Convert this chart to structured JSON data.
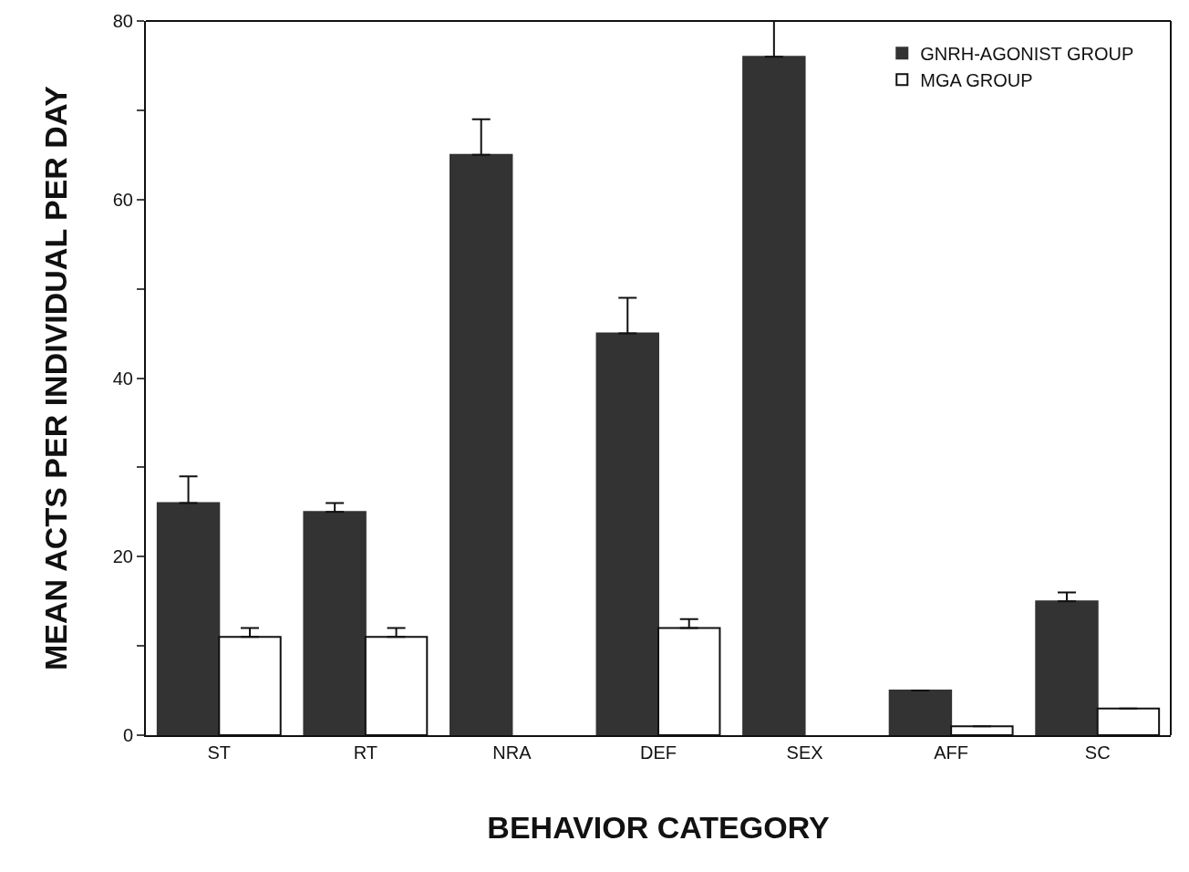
{
  "chart_data": {
    "type": "bar",
    "xlabel": "BEHAVIOR CATEGORY",
    "ylabel": "MEAN ACTS PER INDIVIDUAL PER DAY",
    "categories": [
      "ST",
      "RT",
      "NRA",
      "DEF",
      "SEX",
      "AFF",
      "SC"
    ],
    "series": [
      {
        "name": "GNRH-AGONIST GROUP",
        "color": "#333333",
        "values": [
          26,
          25,
          65,
          45,
          76,
          5,
          15
        ],
        "errors": [
          [
            26,
            29
          ],
          [
            25,
            26
          ],
          [
            65,
            69
          ],
          [
            45,
            49
          ],
          [
            76,
            80
          ],
          null,
          [
            15,
            16
          ]
        ]
      },
      {
        "name": "MGA GROUP",
        "color": "#ffffff",
        "values": [
          11,
          11,
          null,
          12,
          null,
          1,
          3
        ],
        "errors": [
          [
            11,
            12
          ],
          [
            11,
            12
          ],
          null,
          [
            12,
            13
          ],
          null,
          null,
          null
        ]
      }
    ],
    "ylim": [
      0,
      80
    ],
    "yticks": [
      0,
      {
        "value": 10,
        "label": null
      },
      20,
      {
        "value": 30,
        "label": null
      },
      40,
      {
        "value": 50,
        "label": null
      },
      60,
      {
        "value": 70,
        "label": null
      },
      80
    ],
    "grid": false,
    "legend": "top right"
  }
}
